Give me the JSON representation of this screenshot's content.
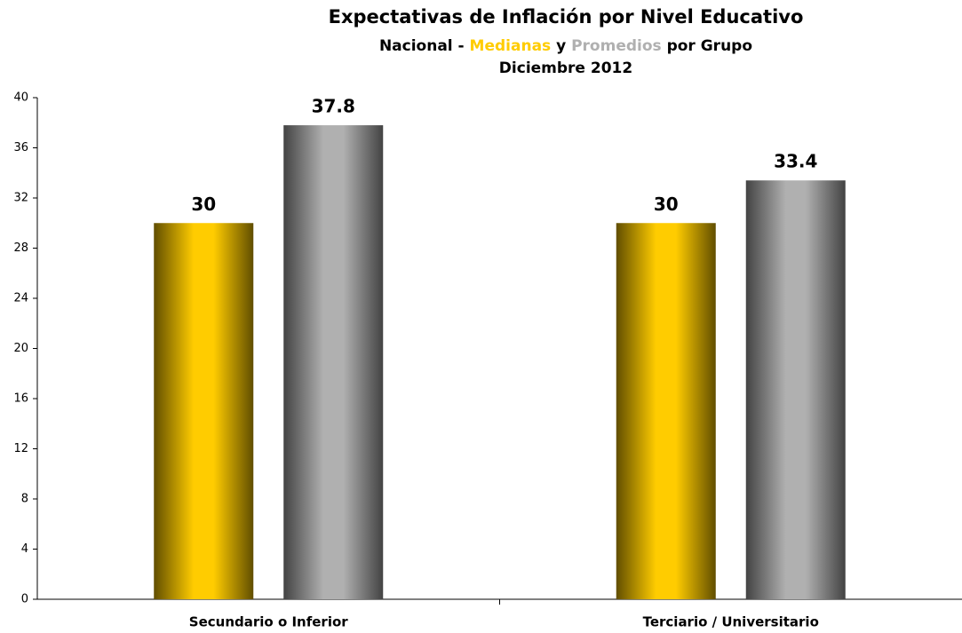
{
  "chart_data": {
    "type": "bar",
    "title": "Expectativas de Inflación por Nivel Educativo",
    "subtitle": [
      "Nacional -",
      "y",
      "por Grupo"
    ],
    "date": "Diciembre 2012",
    "categories": [
      "Secundario o Inferior",
      "Terciario / Universitario"
    ],
    "series": [
      {
        "name": "Medianas",
        "color": "#ffcc00",
        "values": [
          30,
          30
        ]
      },
      {
        "name": "Promedios",
        "color": "#b0b0b0",
        "values": [
          37.8,
          33.4
        ]
      }
    ],
    "ylim": [
      0,
      40
    ],
    "yticks": [
      0,
      4,
      8,
      12,
      16,
      20,
      24,
      28,
      32,
      36,
      40
    ],
    "grid": false
  }
}
